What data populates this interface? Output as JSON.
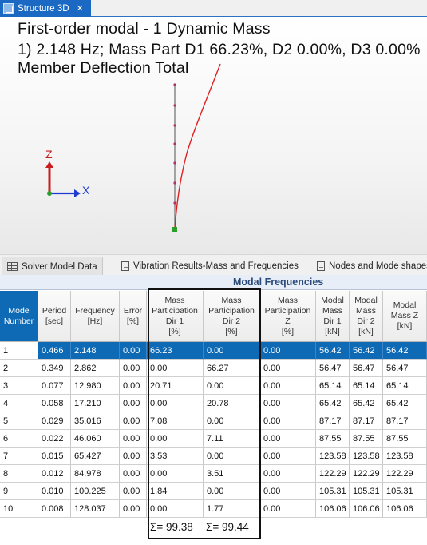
{
  "window_tab": {
    "title": "Structure 3D",
    "close_glyph": "✕"
  },
  "viewport": {
    "line1": "First-order modal - 1 Dynamic Mass",
    "line2": "1) 2.148 Hz; Mass Part D1 66.23%, D2 0.00%, D3 0.00%",
    "line3": "Member Deflection Total",
    "axis_z": "Z",
    "axis_x": "X",
    "colors": {
      "z_axis": "#c81e1e",
      "x_axis": "#1e3cd2",
      "deflection": "#e02020",
      "member": "#666666"
    }
  },
  "lower_tabs": [
    {
      "label": "Solver Model Data",
      "icon": "grid-icon"
    },
    {
      "label": "Vibration Results-Mass and Frequencies",
      "icon": "document-icon"
    },
    {
      "label": "Nodes and Mode shapes",
      "icon": "document-icon"
    }
  ],
  "table": {
    "banner": "Modal Frequencies",
    "headers": [
      "Mode\nNumber",
      "Period\n[sec]",
      "Frequency\n[Hz]",
      "Error\n[%]",
      "Mass\nParticipation\nDir 1\n[%]",
      "Mass\nParticipation\nDir 2\n[%]",
      "Mass\nParticipation\nZ\n[%]",
      "Modal\nMass\nDir 1\n[kN]",
      "Modal\nMass\nDir 2\n[kN]",
      "Modal\nMass Z\n[kN]"
    ],
    "rows": [
      [
        "1",
        "0.466",
        "2.148",
        "0.00",
        "66.23",
        "0.00",
        "0.00",
        "56.42",
        "56.42",
        "56.42"
      ],
      [
        "2",
        "0.349",
        "2.862",
        "0.00",
        "0.00",
        "66.27",
        "0.00",
        "56.47",
        "56.47",
        "56.47"
      ],
      [
        "3",
        "0.077",
        "12.980",
        "0.00",
        "20.71",
        "0.00",
        "0.00",
        "65.14",
        "65.14",
        "65.14"
      ],
      [
        "4",
        "0.058",
        "17.210",
        "0.00",
        "0.00",
        "20.78",
        "0.00",
        "65.42",
        "65.42",
        "65.42"
      ],
      [
        "5",
        "0.029",
        "35.016",
        "0.00",
        "7.08",
        "0.00",
        "0.00",
        "87.17",
        "87.17",
        "87.17"
      ],
      [
        "6",
        "0.022",
        "46.060",
        "0.00",
        "0.00",
        "7.11",
        "0.00",
        "87.55",
        "87.55",
        "87.55"
      ],
      [
        "7",
        "0.015",
        "65.427",
        "0.00",
        "3.53",
        "0.00",
        "0.00",
        "123.58",
        "123.58",
        "123.58"
      ],
      [
        "8",
        "0.012",
        "84.978",
        "0.00",
        "0.00",
        "3.51",
        "0.00",
        "122.29",
        "122.29",
        "122.29"
      ],
      [
        "9",
        "0.010",
        "100.225",
        "0.00",
        "1.84",
        "0.00",
        "0.00",
        "105.31",
        "105.31",
        "105.31"
      ],
      [
        "10",
        "0.008",
        "128.037",
        "0.00",
        "0.00",
        "1.77",
        "0.00",
        "106.06",
        "106.06",
        "106.06"
      ]
    ],
    "selected_row": 0,
    "sum_dir1": "Σ= 99.38",
    "sum_dir2": "Σ= 99.44",
    "colors": {
      "header_blue": "#0f6ab5",
      "selection": "#0f6ab5"
    }
  }
}
